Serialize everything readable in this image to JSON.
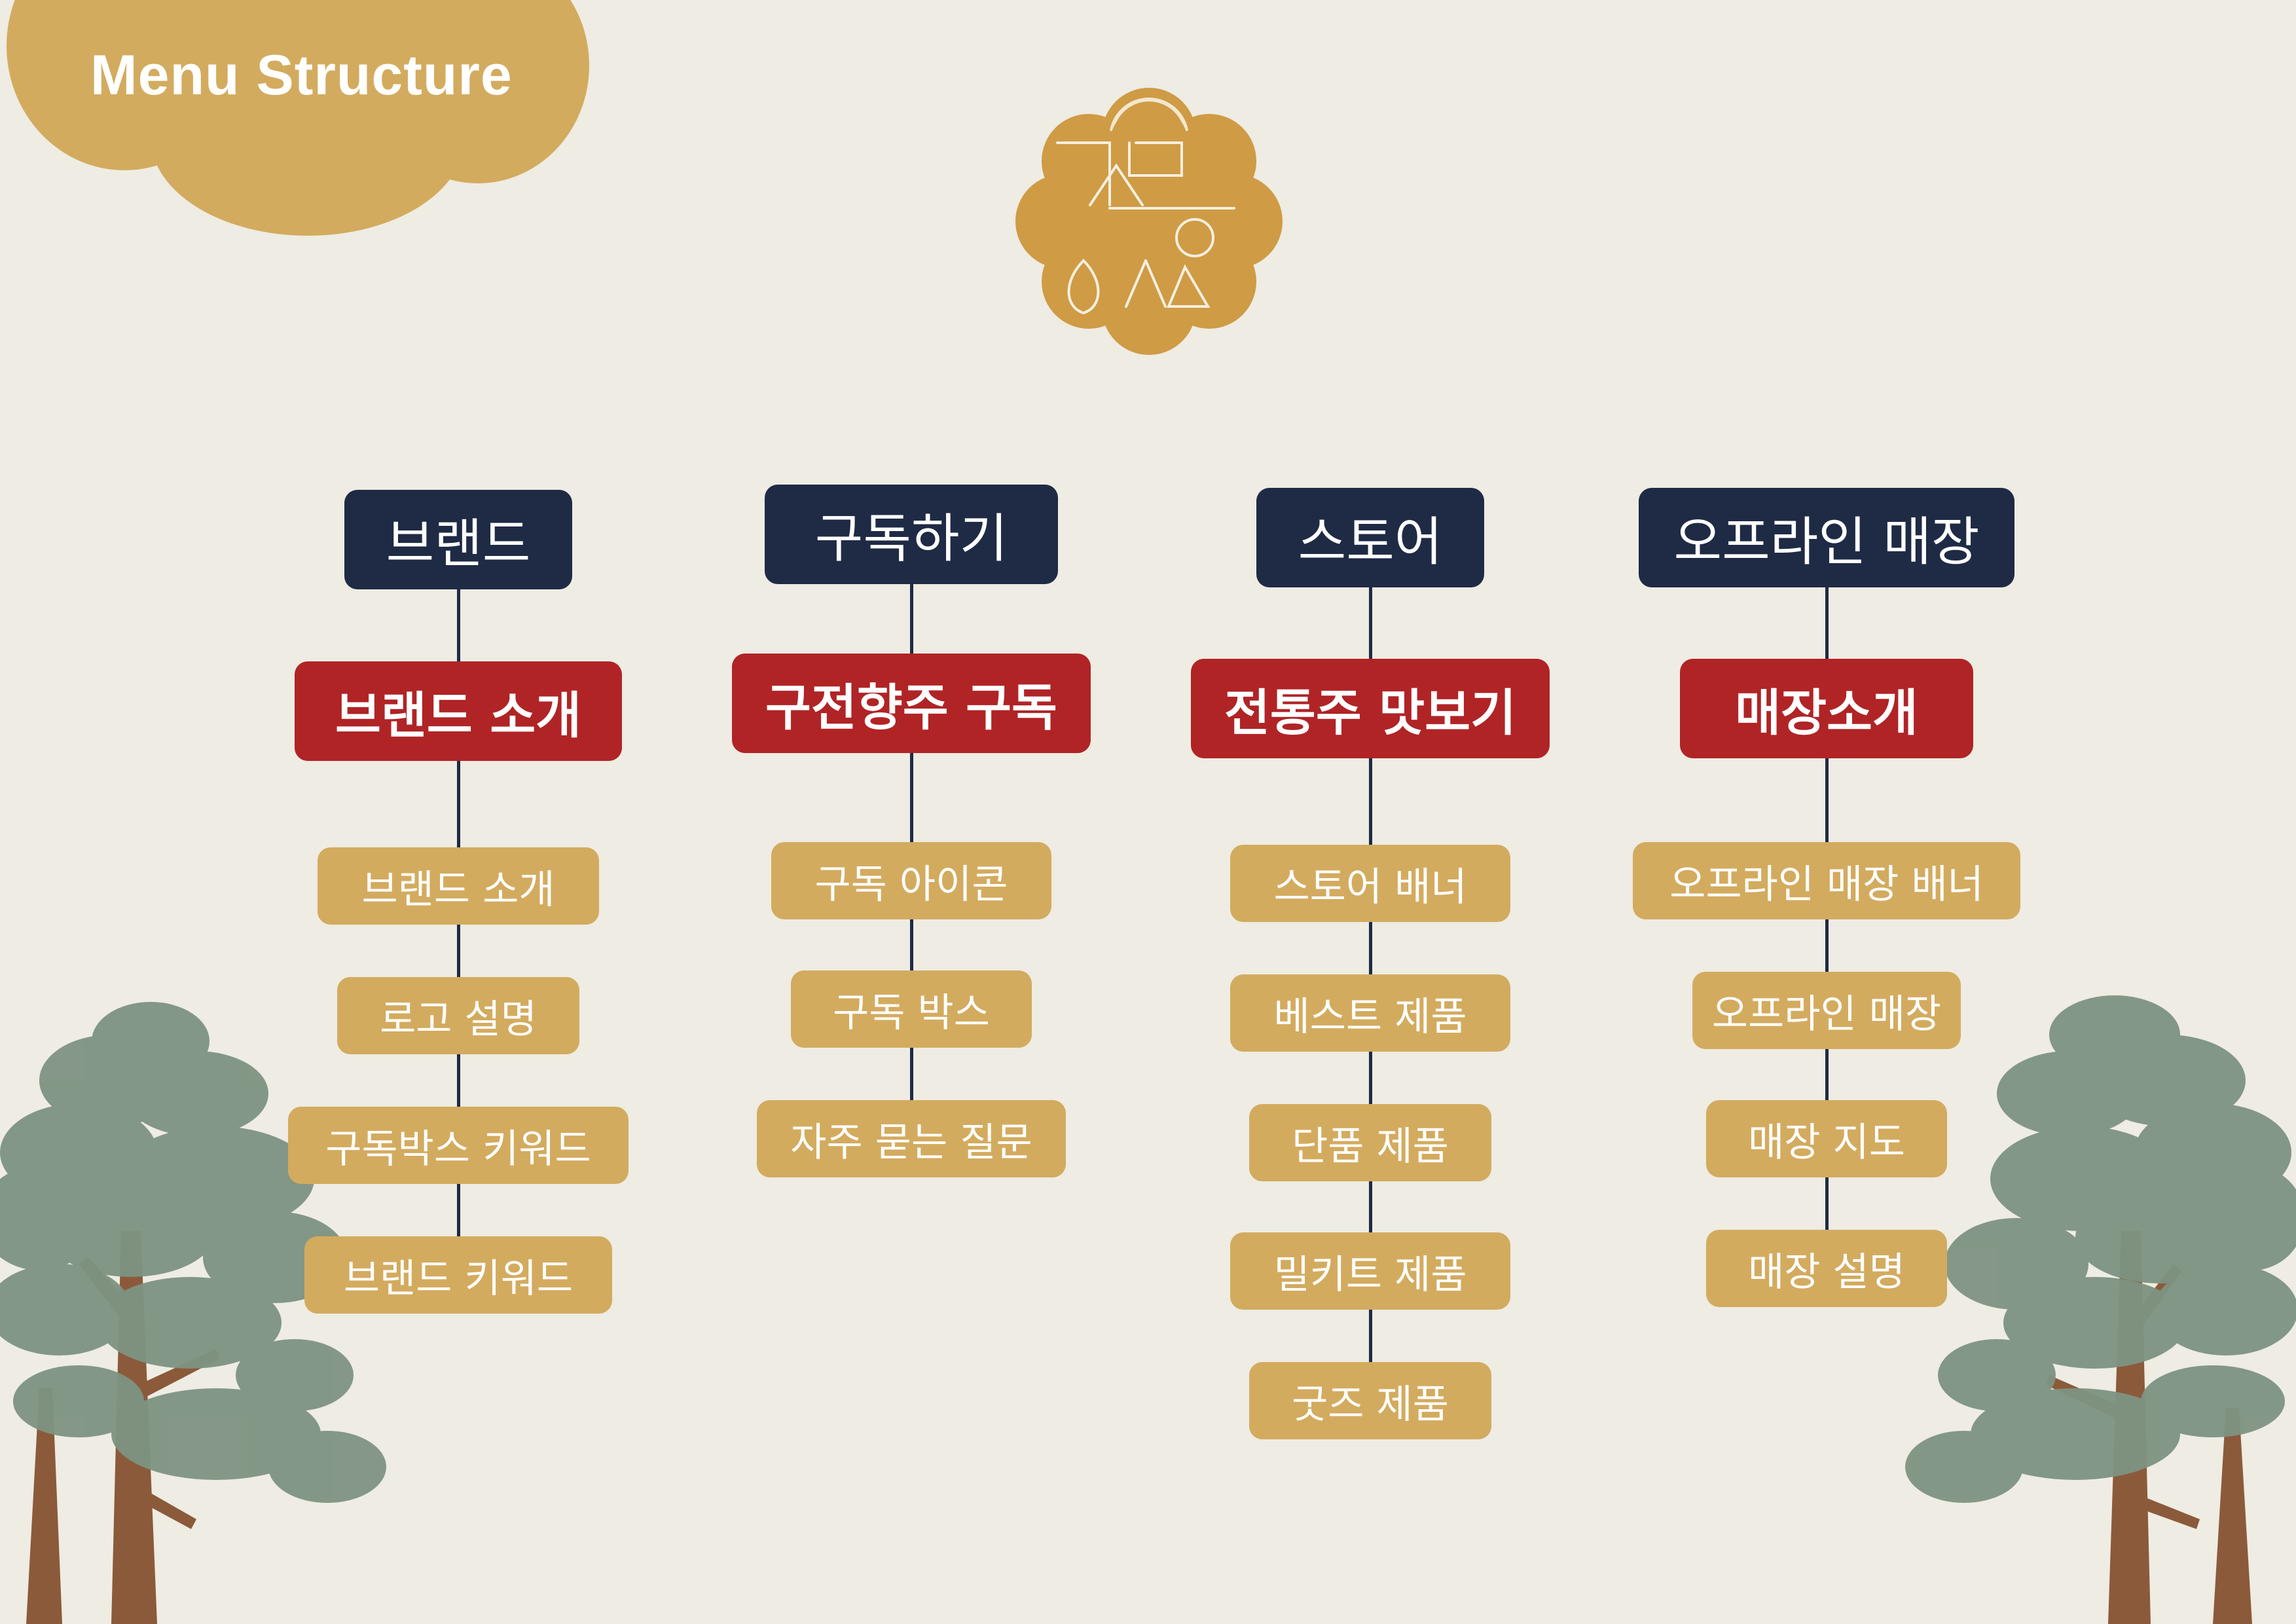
{
  "title": "Menu Structure",
  "logo": {
    "name": "logo-emblem",
    "color": "#cf9b45"
  },
  "colors": {
    "background": "#eeece3",
    "level1": "#1f2b45",
    "level2": "#b02426",
    "level3": "#d3ab5f",
    "tree_foliage": "#7e9382",
    "tree_trunk": "#8b5a3a"
  },
  "menu": [
    {
      "label": "브랜드",
      "sub_label": "브랜드 소개",
      "items": [
        "브랜드 소개",
        "로고 설명",
        "구독박스 키워드",
        "브랜드 키워드"
      ]
    },
    {
      "label": "구독하기",
      "sub_label": "구전향주 구독",
      "items": [
        "구독 아이콘",
        "구독 박스",
        "자주 묻는 질문"
      ]
    },
    {
      "label": "스토어",
      "sub_label": "전통주 맛보기",
      "items": [
        "스토어 배너",
        "베스트 제품",
        "단품 제품",
        "밀키트 제품",
        "굿즈 제품"
      ]
    },
    {
      "label": "오프라인 매장",
      "sub_label": "매장소개",
      "items": [
        "오프라인 매장 배너",
        "오프라인 매장",
        "매장 지도",
        "매장 설명"
      ]
    }
  ]
}
